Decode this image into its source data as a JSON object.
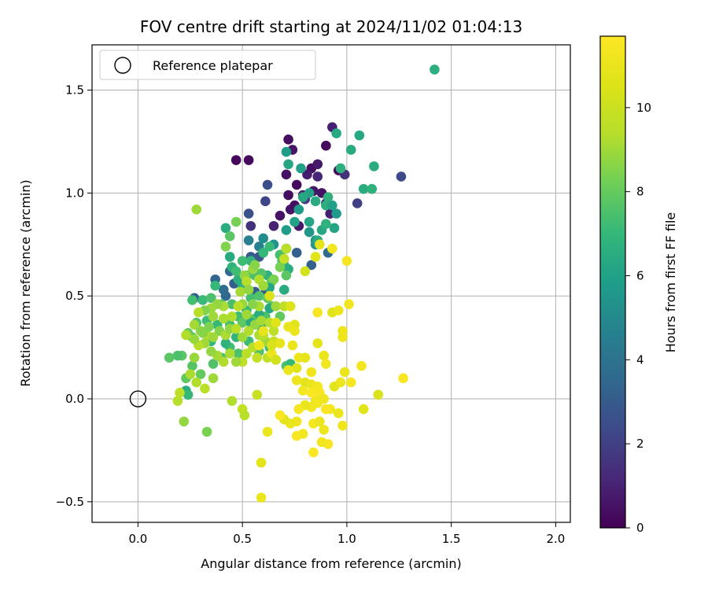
{
  "chart_data": {
    "type": "scatter",
    "title": "FOV centre drift starting at 2024/11/02 01:04:13",
    "xlabel": "Angular distance from reference (arcmin)",
    "ylabel": "Rotation from reference (arcmin)",
    "xlim": [
      -0.22,
      2.07
    ],
    "ylim": [
      -0.6,
      1.72
    ],
    "xticks": [
      0.0,
      0.5,
      1.0,
      1.5,
      2.0
    ],
    "xtick_labels": [
      "0.0",
      "0.5",
      "1.0",
      "1.5",
      "2.0"
    ],
    "yticks": [
      -0.5,
      0.0,
      0.5,
      1.0,
      1.5
    ],
    "ytick_labels": [
      "−0.5",
      "0.0",
      "0.5",
      "1.0",
      "1.5"
    ],
    "grid": true,
    "legend": {
      "placement": "top-left",
      "entries": [
        "Reference platepar"
      ]
    },
    "reference_point": {
      "x": 0.0,
      "y": 0.0
    },
    "colorbar": {
      "label": "Hours from first FF file",
      "colormap": "viridis",
      "range": [
        0,
        11.7
      ],
      "ticks": [
        0,
        2,
        4,
        6,
        8,
        10
      ],
      "tick_labels": [
        "0",
        "2",
        "4",
        "6",
        "8",
        "10"
      ]
    },
    "columns": [
      "x",
      "y",
      "hours"
    ],
    "points": [
      [
        0.47,
        1.16,
        0.2
      ],
      [
        0.53,
        1.16,
        0.3
      ],
      [
        0.72,
        1.26,
        0.4
      ],
      [
        0.74,
        1.21,
        0.6
      ],
      [
        0.71,
        1.09,
        0.5
      ],
      [
        0.76,
        1.04,
        0.3
      ],
      [
        0.79,
        0.99,
        0.8
      ],
      [
        0.83,
        1.12,
        0.4
      ],
      [
        0.84,
        1.01,
        0.6
      ],
      [
        0.88,
        1.0,
        0.5
      ],
      [
        0.86,
        1.14,
        0.7
      ],
      [
        0.93,
        1.32,
        0.9
      ],
      [
        0.96,
        1.11,
        0.3
      ],
      [
        0.9,
        1.23,
        0.2
      ],
      [
        0.68,
        0.89,
        0.5
      ],
      [
        0.72,
        0.99,
        0.3
      ],
      [
        0.73,
        0.92,
        0.6
      ],
      [
        0.75,
        0.94,
        0.4
      ],
      [
        0.77,
        0.84,
        0.7
      ],
      [
        0.81,
        1.09,
        0.8
      ],
      [
        0.86,
        1.08,
        1.1
      ],
      [
        0.9,
        0.95,
        1.4
      ],
      [
        0.92,
        0.9,
        0.9
      ],
      [
        0.99,
        1.09,
        1.5
      ],
      [
        1.05,
        0.95,
        2.0
      ],
      [
        1.26,
        1.08,
        2.3
      ],
      [
        0.54,
        0.84,
        1.5
      ],
      [
        0.61,
        0.96,
        2.2
      ],
      [
        0.62,
        1.04,
        2.5
      ],
      [
        0.65,
        0.84,
        1.0
      ],
      [
        0.53,
        0.9,
        2.6
      ],
      [
        0.8,
        0.97,
        1.8
      ],
      [
        0.76,
        0.71,
        3.2
      ],
      [
        0.71,
        0.73,
        3.0
      ],
      [
        0.27,
        0.49,
        3.2
      ],
      [
        0.37,
        0.58,
        3.4
      ],
      [
        0.44,
        0.62,
        3.6
      ],
      [
        0.41,
        0.53,
        3.8
      ],
      [
        0.56,
        0.52,
        3.0
      ],
      [
        0.61,
        0.52,
        2.6
      ],
      [
        0.62,
        0.53,
        2.9
      ],
      [
        0.83,
        0.65,
        3.3
      ],
      [
        0.91,
        0.71,
        3.7
      ],
      [
        0.58,
        0.69,
        2.8
      ],
      [
        0.54,
        0.69,
        3.0
      ],
      [
        0.42,
        0.5,
        3.5
      ],
      [
        0.46,
        0.56,
        3.1
      ],
      [
        0.53,
        0.77,
        4.6
      ],
      [
        0.58,
        0.74,
        4.6
      ],
      [
        0.6,
        0.78,
        5.1
      ],
      [
        0.65,
        0.75,
        5.4
      ],
      [
        0.71,
        0.82,
        5.8
      ],
      [
        0.75,
        0.86,
        6.0
      ],
      [
        0.77,
        0.92,
        5.7
      ],
      [
        0.82,
        1.0,
        6.0
      ],
      [
        0.79,
        0.98,
        6.3
      ],
      [
        0.82,
        0.81,
        5.5
      ],
      [
        0.82,
        0.86,
        6.1
      ],
      [
        0.85,
        0.96,
        6.4
      ],
      [
        0.88,
        0.82,
        6.3
      ],
      [
        0.9,
        0.94,
        6.6
      ],
      [
        0.93,
        0.94,
        6.0
      ],
      [
        0.95,
        0.9,
        5.7
      ],
      [
        0.94,
        0.83,
        6.2
      ],
      [
        0.85,
        0.77,
        5.3
      ],
      [
        0.85,
        0.75,
        5.5
      ],
      [
        0.78,
        1.12,
        6.0
      ],
      [
        0.71,
        1.2,
        5.8
      ],
      [
        0.72,
        1.14,
        6.2
      ],
      [
        0.95,
        1.29,
        6.3
      ],
      [
        1.06,
        1.28,
        6.3
      ],
      [
        1.02,
        1.21,
        6.4
      ],
      [
        1.08,
        1.02,
        6.5
      ],
      [
        1.12,
        1.02,
        6.7
      ],
      [
        1.13,
        1.13,
        6.5
      ],
      [
        0.97,
        1.12,
        6.6
      ],
      [
        1.42,
        1.6,
        6.6
      ],
      [
        0.91,
        0.98,
        6.7
      ],
      [
        0.9,
        0.85,
        6.8
      ],
      [
        0.86,
        0.77,
        6.5
      ],
      [
        0.72,
        0.63,
        6.5
      ],
      [
        0.7,
        0.65,
        6.6
      ],
      [
        0.68,
        0.7,
        6.7
      ],
      [
        0.62,
        0.6,
        6.8
      ],
      [
        0.58,
        0.6,
        6.9
      ],
      [
        0.54,
        0.67,
        6.9
      ],
      [
        0.5,
        0.55,
        6.8
      ],
      [
        0.48,
        0.58,
        6.6
      ],
      [
        0.45,
        0.64,
        6.8
      ],
      [
        0.44,
        0.69,
        6.4
      ],
      [
        0.42,
        0.83,
        6.5
      ],
      [
        0.44,
        0.79,
        7.8
      ],
      [
        0.5,
        0.67,
        7.2
      ],
      [
        0.56,
        0.6,
        7.4
      ],
      [
        0.59,
        0.61,
        7.6
      ],
      [
        0.64,
        0.57,
        7.9
      ],
      [
        0.6,
        0.71,
        7.0
      ],
      [
        0.63,
        0.74,
        7.1
      ],
      [
        0.68,
        0.7,
        7.4
      ],
      [
        0.69,
        0.67,
        7.6
      ],
      [
        0.71,
        0.6,
        7.8
      ],
      [
        0.68,
        0.64,
        8.3
      ],
      [
        0.65,
        0.58,
        8.4
      ],
      [
        0.52,
        0.6,
        7.6
      ],
      [
        0.47,
        0.62,
        7.2
      ],
      [
        0.37,
        0.55,
        7.0
      ],
      [
        0.31,
        0.48,
        7.1
      ],
      [
        0.26,
        0.48,
        7.3
      ],
      [
        0.35,
        0.49,
        7.5
      ],
      [
        0.4,
        0.46,
        7.7
      ],
      [
        0.45,
        0.46,
        7.4
      ],
      [
        0.48,
        0.4,
        7.2
      ],
      [
        0.52,
        0.43,
        7.0
      ],
      [
        0.54,
        0.49,
        7.3
      ],
      [
        0.58,
        0.5,
        7.6
      ],
      [
        0.62,
        0.49,
        8.0
      ],
      [
        0.64,
        0.45,
        7.8
      ],
      [
        0.68,
        0.4,
        7.9
      ],
      [
        0.61,
        0.4,
        7.5
      ],
      [
        0.56,
        0.39,
        7.7
      ],
      [
        0.5,
        0.37,
        7.9
      ],
      [
        0.44,
        0.36,
        7.4
      ],
      [
        0.38,
        0.36,
        7.0
      ],
      [
        0.33,
        0.38,
        7.2
      ],
      [
        0.28,
        0.37,
        7.6
      ],
      [
        0.26,
        0.3,
        7.9
      ],
      [
        0.24,
        0.32,
        8.0
      ],
      [
        0.21,
        0.21,
        7.8
      ],
      [
        0.26,
        0.16,
        7.7
      ],
      [
        0.3,
        0.12,
        8.0
      ],
      [
        0.36,
        0.17,
        7.6
      ],
      [
        0.4,
        0.2,
        7.4
      ],
      [
        0.44,
        0.25,
        7.3
      ],
      [
        0.48,
        0.22,
        7.5
      ],
      [
        0.53,
        0.28,
        7.1
      ],
      [
        0.58,
        0.23,
        7.6
      ],
      [
        0.63,
        0.25,
        7.3
      ],
      [
        0.66,
        0.19,
        7.8
      ],
      [
        0.71,
        0.16,
        7.5
      ],
      [
        0.73,
        0.17,
        7.0
      ],
      [
        0.63,
        0.54,
        6.3
      ],
      [
        0.7,
        0.53,
        6.4
      ],
      [
        0.63,
        0.44,
        6.3
      ],
      [
        0.58,
        0.41,
        6.5
      ],
      [
        0.54,
        0.37,
        6.4
      ],
      [
        0.59,
        0.35,
        6.6
      ],
      [
        0.42,
        0.27,
        6.8
      ],
      [
        0.47,
        0.3,
        6.9
      ],
      [
        0.35,
        0.28,
        7.0
      ],
      [
        0.23,
        0.04,
        6.5
      ],
      [
        0.15,
        0.2,
        7.8
      ],
      [
        0.19,
        0.21,
        7.5
      ],
      [
        0.23,
        0.1,
        7.9
      ],
      [
        0.24,
        0.02,
        7.0
      ],
      [
        0.28,
        0.92,
        9.0
      ],
      [
        0.42,
        0.74,
        8.5
      ],
      [
        0.47,
        0.86,
        8.3
      ],
      [
        0.51,
        0.6,
        8.8
      ],
      [
        0.55,
        0.63,
        8.9
      ],
      [
        0.58,
        0.58,
        9.3
      ],
      [
        0.6,
        0.55,
        9.0
      ],
      [
        0.56,
        0.65,
        8.6
      ],
      [
        0.52,
        0.57,
        9.4
      ],
      [
        0.49,
        0.52,
        9.1
      ],
      [
        0.53,
        0.53,
        8.8
      ],
      [
        0.58,
        0.45,
        9.2
      ],
      [
        0.52,
        0.41,
        9.0
      ],
      [
        0.55,
        0.46,
        8.6
      ],
      [
        0.5,
        0.46,
        8.9
      ],
      [
        0.48,
        0.45,
        9.5
      ],
      [
        0.45,
        0.4,
        9.3
      ],
      [
        0.41,
        0.45,
        9.2
      ],
      [
        0.38,
        0.46,
        8.8
      ],
      [
        0.35,
        0.44,
        9.0
      ],
      [
        0.32,
        0.43,
        8.5
      ],
      [
        0.29,
        0.42,
        9.4
      ],
      [
        0.27,
        0.36,
        9.1
      ],
      [
        0.3,
        0.33,
        8.7
      ],
      [
        0.33,
        0.31,
        9.3
      ],
      [
        0.36,
        0.3,
        9.0
      ],
      [
        0.39,
        0.33,
        8.6
      ],
      [
        0.42,
        0.31,
        9.2
      ],
      [
        0.44,
        0.34,
        8.8
      ],
      [
        0.47,
        0.34,
        9.5
      ],
      [
        0.5,
        0.3,
        9.0
      ],
      [
        0.53,
        0.33,
        9.3
      ],
      [
        0.56,
        0.36,
        8.8
      ],
      [
        0.59,
        0.38,
        9.1
      ],
      [
        0.63,
        0.37,
        9.4
      ],
      [
        0.66,
        0.45,
        9.0
      ],
      [
        0.7,
        0.45,
        9.6
      ],
      [
        0.61,
        0.28,
        9.0
      ],
      [
        0.58,
        0.31,
        9.2
      ],
      [
        0.55,
        0.25,
        9.4
      ],
      [
        0.52,
        0.22,
        9.5
      ],
      [
        0.5,
        0.18,
        9.6
      ],
      [
        0.47,
        0.18,
        9.0
      ],
      [
        0.44,
        0.22,
        9.2
      ],
      [
        0.41,
        0.18,
        9.3
      ],
      [
        0.38,
        0.21,
        9.1
      ],
      [
        0.35,
        0.23,
        8.8
      ],
      [
        0.32,
        0.27,
        9.0
      ],
      [
        0.29,
        0.26,
        9.4
      ],
      [
        0.27,
        0.2,
        8.9
      ],
      [
        0.25,
        0.12,
        9.2
      ],
      [
        0.28,
        0.08,
        9.3
      ],
      [
        0.32,
        0.05,
        9.5
      ],
      [
        0.36,
        0.1,
        9.0
      ],
      [
        0.2,
        0.03,
        9.6
      ],
      [
        0.19,
        -0.01,
        9.4
      ],
      [
        0.22,
        -0.11,
        8.8
      ],
      [
        0.33,
        -0.16,
        8.4
      ],
      [
        0.45,
        -0.01,
        9.3
      ],
      [
        0.5,
        -0.05,
        9.8
      ],
      [
        0.51,
        -0.08,
        9.5
      ],
      [
        0.57,
        0.02,
        9.9
      ],
      [
        0.62,
        0.2,
        9.7
      ],
      [
        0.65,
        0.28,
        9.9
      ],
      [
        0.6,
        0.31,
        9.5
      ],
      [
        0.57,
        0.2,
        9.8
      ],
      [
        0.36,
        0.4,
        9.0
      ],
      [
        0.41,
        0.39,
        9.2
      ],
      [
        0.34,
        0.35,
        8.4
      ],
      [
        0.31,
        0.32,
        8.6
      ],
      [
        0.27,
        0.29,
        8.9
      ],
      [
        0.23,
        0.31,
        9.3
      ],
      [
        0.65,
        0.33,
        9.6
      ],
      [
        0.71,
        0.73,
        9.5
      ],
      [
        0.7,
        0.68,
        9.8
      ],
      [
        0.8,
        0.62,
        10.2
      ],
      [
        0.85,
        0.69,
        10.7
      ],
      [
        0.87,
        0.75,
        10.9
      ],
      [
        0.93,
        0.73,
        11.3
      ],
      [
        1.0,
        0.67,
        11.4
      ],
      [
        0.75,
        0.36,
        10.8
      ],
      [
        0.75,
        0.33,
        11.0
      ],
      [
        0.73,
        0.45,
        10.6
      ],
      [
        0.63,
        0.5,
        10.5
      ],
      [
        0.66,
        0.37,
        10.7
      ],
      [
        0.6,
        0.33,
        10.9
      ],
      [
        0.58,
        0.26,
        11.0
      ],
      [
        0.64,
        0.22,
        11.0
      ],
      [
        0.68,
        0.27,
        10.9
      ],
      [
        0.72,
        0.35,
        11.0
      ],
      [
        0.74,
        0.26,
        11.0
      ],
      [
        0.77,
        0.2,
        11.1
      ],
      [
        0.8,
        0.2,
        10.9
      ],
      [
        0.83,
        0.13,
        11.2
      ],
      [
        0.86,
        0.27,
        10.8
      ],
      [
        0.89,
        0.21,
        11.0
      ],
      [
        0.9,
        0.17,
        11.3
      ],
      [
        0.93,
        0.42,
        10.7
      ],
      [
        0.96,
        0.43,
        11.0
      ],
      [
        0.98,
        0.33,
        11.1
      ],
      [
        0.98,
        0.3,
        11.2
      ],
      [
        1.01,
        0.46,
        11.3
      ],
      [
        0.86,
        0.42,
        11.5
      ],
      [
        0.76,
        0.15,
        10.7
      ],
      [
        0.8,
        0.08,
        10.8
      ],
      [
        0.83,
        0.07,
        11.0
      ],
      [
        0.86,
        0.06,
        11.3
      ],
      [
        0.87,
        0.03,
        11.5
      ],
      [
        0.89,
        0.0,
        11.2
      ],
      [
        0.92,
        -0.05,
        11.3
      ],
      [
        0.94,
        0.06,
        10.8
      ],
      [
        0.97,
        0.08,
        11.1
      ],
      [
        0.99,
        0.13,
        11.0
      ],
      [
        1.02,
        0.08,
        11.4
      ],
      [
        1.07,
        0.16,
        11.3
      ],
      [
        1.08,
        -0.05,
        10.7
      ],
      [
        1.15,
        0.02,
        10.4
      ],
      [
        1.27,
        0.1,
        11.5
      ],
      [
        0.72,
        0.14,
        11.0
      ],
      [
        0.76,
        0.09,
        11.2
      ],
      [
        0.79,
        0.04,
        11.4
      ],
      [
        0.83,
        0.03,
        11.6
      ],
      [
        0.85,
        -0.01,
        11.1
      ],
      [
        0.83,
        -0.04,
        11.3
      ],
      [
        0.8,
        -0.03,
        11.0
      ],
      [
        0.77,
        -0.05,
        11.4
      ],
      [
        0.76,
        -0.11,
        11.2
      ],
      [
        0.73,
        -0.12,
        11.0
      ],
      [
        0.7,
        -0.1,
        10.8
      ],
      [
        0.76,
        -0.18,
        11.6
      ],
      [
        0.79,
        -0.17,
        11.3
      ],
      [
        0.84,
        -0.12,
        11.4
      ],
      [
        0.87,
        -0.11,
        11.0
      ],
      [
        0.89,
        -0.15,
        11.2
      ],
      [
        0.9,
        -0.05,
        11.5
      ],
      [
        0.86,
        -0.02,
        11.3
      ],
      [
        0.91,
        -0.22,
        11.5
      ],
      [
        0.88,
        -0.21,
        11.3
      ],
      [
        0.84,
        -0.26,
        11.6
      ],
      [
        0.96,
        -0.07,
        11.0
      ],
      [
        0.98,
        -0.13,
        11.2
      ],
      [
        0.62,
        -0.16,
        11.0
      ],
      [
        0.59,
        -0.31,
        10.8
      ],
      [
        0.59,
        -0.48,
        11.0
      ],
      [
        0.66,
        0.19,
        10.2
      ],
      [
        0.64,
        0.26,
        10.4
      ],
      [
        0.68,
        -0.08,
        11.5
      ]
    ]
  }
}
